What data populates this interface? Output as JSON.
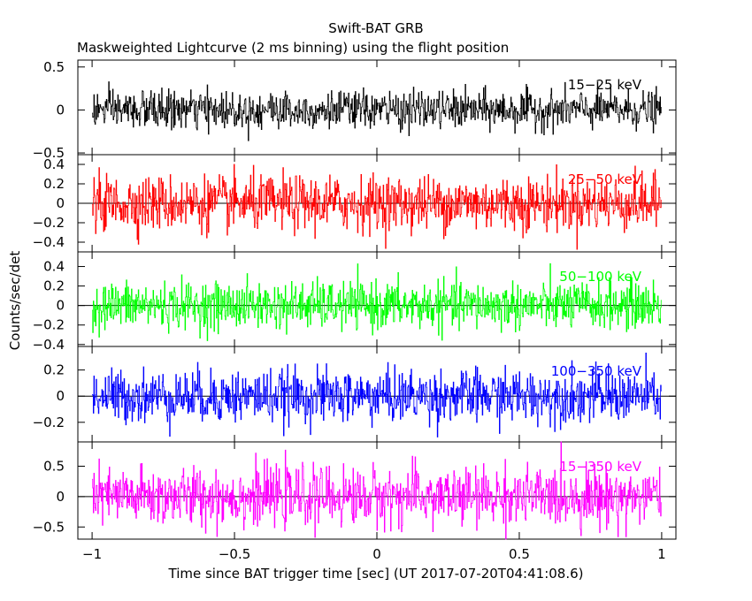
{
  "chart_data": {
    "type": "line",
    "title": "Swift-BAT GRB",
    "subtitle": "Maskweighted Lightcurve (2 ms binning) using the flight position",
    "xlabel": "Time since BAT trigger time [sec] (UT 2017-07-20T04:41:08.6)",
    "ylabel": "Counts/sec/det",
    "xlim": [
      -1.05,
      1.05
    ],
    "x_ticks": [
      -1,
      -0.5,
      0,
      0.5,
      1
    ],
    "x_tick_labels": [
      "−1",
      "−0.5",
      "0",
      "0.5",
      "1"
    ],
    "x_range": [
      -1,
      1
    ],
    "bin_width": 0.002,
    "panels": [
      {
        "band": "15−25 keV",
        "color": "#000000",
        "ylim": [
          -0.52,
          0.58
        ],
        "y_ticks": [
          -0.5,
          0,
          0.5
        ],
        "y_tick_labels": [
          "−0.5",
          "0",
          "0.5"
        ],
        "noise_sigma": 0.11,
        "zero_line": false
      },
      {
        "band": "25−50 keV",
        "color": "#ff0000",
        "ylim": [
          -0.5,
          0.5
        ],
        "y_ticks": [
          -0.4,
          -0.2,
          0,
          0.2,
          0.4
        ],
        "y_tick_labels": [
          "−0.4",
          "−0.2",
          "0",
          "0.2",
          "0.4"
        ],
        "noise_sigma": 0.14,
        "zero_line": true
      },
      {
        "band": "50−100 keV",
        "color": "#00ff00",
        "ylim": [
          -0.42,
          0.55
        ],
        "y_ticks": [
          -0.4,
          -0.2,
          0,
          0.2,
          0.4
        ],
        "y_tick_labels": [
          "−0.4",
          "−0.2",
          "0",
          "0.2",
          "0.4"
        ],
        "noise_sigma": 0.12,
        "zero_line": true
      },
      {
        "band": "100−350 keV",
        "color": "#0000ff",
        "ylim": [
          -0.35,
          0.38
        ],
        "y_ticks": [
          -0.2,
          0,
          0.2
        ],
        "y_tick_labels": [
          "−0.2",
          "0",
          "0.2"
        ],
        "noise_sigma": 0.1,
        "zero_line": true
      },
      {
        "band": "15−350 keV",
        "color": "#ff00ff",
        "ylim": [
          -0.7,
          0.9
        ],
        "y_ticks": [
          -0.5,
          0,
          0.5
        ],
        "y_tick_labels": [
          "−0.5",
          "0",
          "0.5"
        ],
        "noise_sigma": 0.24,
        "zero_line": true
      }
    ],
    "grid": false,
    "legend": "none"
  }
}
